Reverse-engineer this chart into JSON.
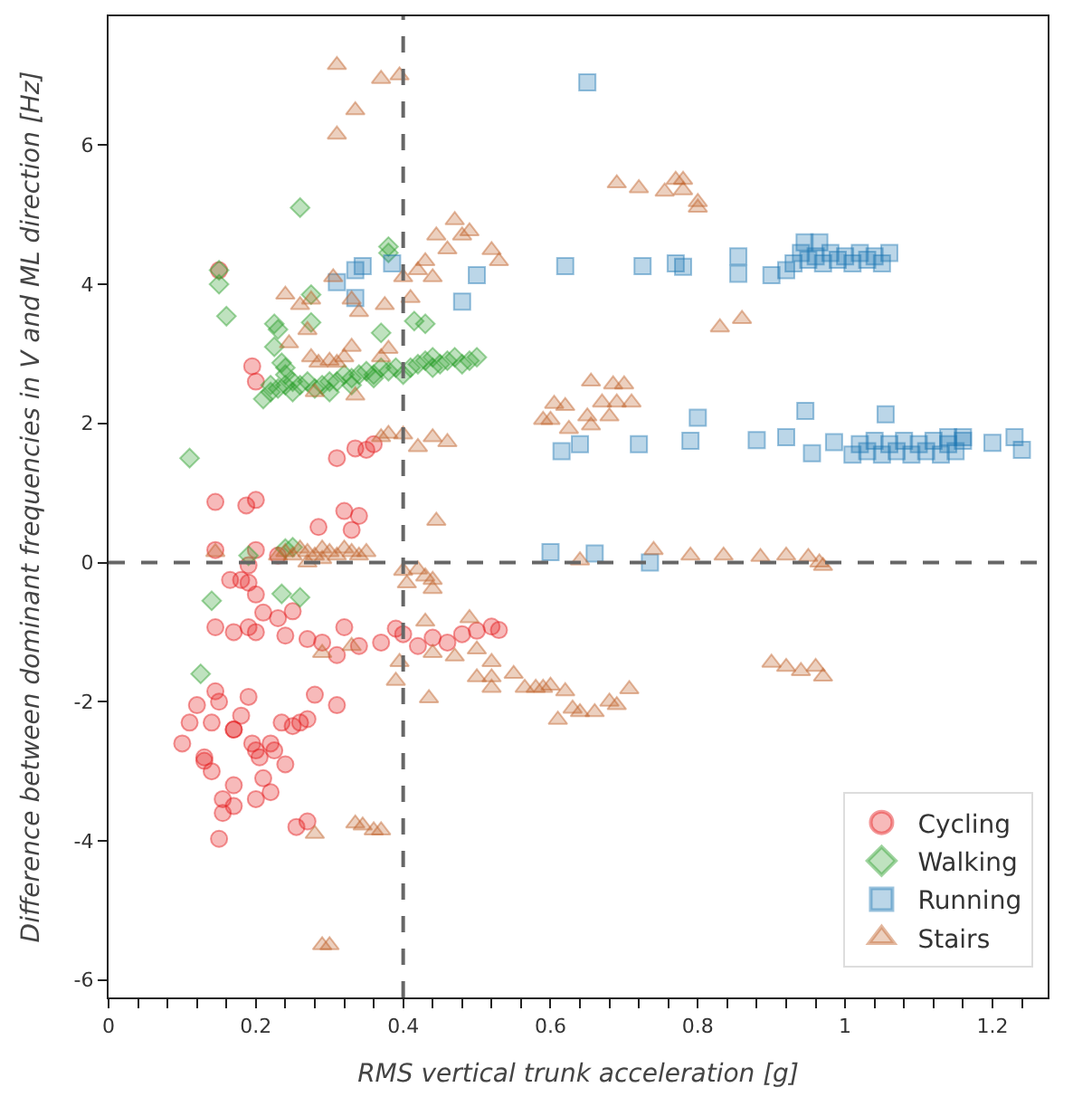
{
  "chart_data": {
    "type": "scatter",
    "xlabel": "RMS vertical trunk acceleration [g]",
    "ylabel": "Difference between dominant frequencies in V and ML direction [Hz]",
    "xlim": [
      0,
      1.275
    ],
    "ylim": [
      -6.25,
      7.85
    ],
    "xticks": [
      0,
      {
        "value": 0.04,
        "label": null
      },
      {
        "value": 0.08,
        "label": null
      },
      {
        "value": 0.12,
        "label": null
      },
      {
        "value": 0.16,
        "label": null
      },
      0.2,
      {
        "value": 0.24,
        "label": null
      },
      {
        "value": 0.28,
        "label": null
      },
      {
        "value": 0.32,
        "label": null
      },
      {
        "value": 0.36,
        "label": null
      },
      0.4,
      {
        "value": 0.44,
        "label": null
      },
      {
        "value": 0.48,
        "label": null
      },
      {
        "value": 0.52,
        "label": null
      },
      {
        "value": 0.56,
        "label": null
      },
      0.6,
      {
        "value": 0.64,
        "label": null
      },
      {
        "value": 0.68,
        "label": null
      },
      {
        "value": 0.72,
        "label": null
      },
      {
        "value": 0.76,
        "label": null
      },
      0.8,
      {
        "value": 0.84,
        "label": null
      },
      {
        "value": 0.88,
        "label": null
      },
      {
        "value": 0.92,
        "label": null
      },
      {
        "value": 0.96,
        "label": null
      },
      1,
      {
        "value": 1.04,
        "label": null
      },
      {
        "value": 1.08,
        "label": null
      },
      {
        "value": 1.12,
        "label": null
      },
      {
        "value": 1.16,
        "label": null
      },
      1.2,
      {
        "value": 1.24,
        "label": null
      }
    ],
    "yticks": [
      -6,
      -4,
      -2,
      0,
      2,
      4,
      6
    ],
    "legend": "bottom right",
    "ref_lines": [
      {
        "axis": "x",
        "value": 0.4,
        "color": "#666666",
        "line_style": "dashed"
      },
      {
        "axis": "y",
        "value": 0,
        "color": "#666666",
        "line_style": "dashed"
      }
    ],
    "series": [
      {
        "name": "Cycling",
        "color": "#e41a1c",
        "marker": "circle",
        "x": [
          0.145,
          0.187,
          0.2,
          0.285,
          0.32,
          0.34,
          0.33,
          0.195,
          0.2,
          0.15,
          0.31,
          0.335,
          0.35,
          0.36,
          0.145,
          0.2,
          0.23,
          0.19,
          0.165,
          0.18,
          0.19,
          0.2,
          0.145,
          0.17,
          0.19,
          0.2,
          0.21,
          0.23,
          0.24,
          0.25,
          0.27,
          0.29,
          0.31,
          0.32,
          0.34,
          0.37,
          0.39,
          0.4,
          0.42,
          0.44,
          0.46,
          0.48,
          0.5,
          0.52,
          0.53,
          0.1,
          0.11,
          0.12,
          0.13,
          0.14,
          0.145,
          0.15,
          0.17,
          0.18,
          0.19,
          0.195,
          0.205,
          0.21,
          0.22,
          0.225,
          0.235,
          0.24,
          0.25,
          0.26,
          0.27,
          0.28,
          0.31,
          0.13,
          0.14,
          0.155,
          0.155,
          0.17,
          0.17,
          0.2,
          0.22,
          0.15,
          0.255,
          0.27,
          0.17,
          0.2
        ],
        "values": [
          0.87,
          0.82,
          0.9,
          0.51,
          0.74,
          0.67,
          0.47,
          2.82,
          2.6,
          4.2,
          1.5,
          1.64,
          1.62,
          1.7,
          0.18,
          0.18,
          0.1,
          -0.04,
          -0.25,
          -0.25,
          -0.29,
          -0.46,
          -0.93,
          -1.0,
          -0.93,
          -1.0,
          -0.72,
          -0.8,
          -1.05,
          -0.7,
          -1.1,
          -1.15,
          -1.33,
          -0.93,
          -1.2,
          -1.15,
          -0.95,
          -1.03,
          -1.2,
          -1.08,
          -1.15,
          -1.03,
          -0.98,
          -0.92,
          -0.97,
          -2.6,
          -2.3,
          -2.05,
          -2.85,
          -2.3,
          -1.85,
          -2.0,
          -2.4,
          -2.2,
          -1.93,
          -2.6,
          -2.8,
          -3.1,
          -2.6,
          -2.7,
          -2.3,
          -2.9,
          -2.35,
          -2.3,
          -2.25,
          -1.9,
          -2.05,
          -2.8,
          -3.0,
          -3.4,
          -3.6,
          -3.5,
          -3.2,
          -3.4,
          -3.3,
          -3.97,
          -3.8,
          -3.72,
          -2.4,
          -2.7
        ]
      },
      {
        "name": "Walking",
        "color": "#2ca02c",
        "marker": "diamond",
        "x": [
          0.26,
          0.15,
          0.15,
          0.16,
          0.38,
          0.38,
          0.225,
          0.23,
          0.275,
          0.275,
          0.225,
          0.235,
          0.24,
          0.37,
          0.415,
          0.43,
          0.11,
          0.22,
          0.24,
          0.25,
          0.21,
          0.22,
          0.23,
          0.24,
          0.25,
          0.26,
          0.27,
          0.28,
          0.29,
          0.3,
          0.31,
          0.32,
          0.33,
          0.34,
          0.35,
          0.36,
          0.37,
          0.38,
          0.39,
          0.4,
          0.41,
          0.42,
          0.43,
          0.44,
          0.45,
          0.46,
          0.47,
          0.48,
          0.49,
          0.5,
          0.44,
          0.36,
          0.3,
          0.33,
          0.14,
          0.125,
          0.235,
          0.26,
          0.19,
          0.24,
          0.25
        ],
        "values": [
          5.1,
          4.2,
          4.0,
          3.54,
          4.54,
          4.45,
          3.43,
          3.35,
          3.85,
          3.45,
          3.1,
          2.87,
          2.8,
          3.3,
          3.47,
          3.43,
          1.5,
          2.55,
          2.7,
          2.6,
          2.35,
          2.45,
          2.5,
          2.55,
          2.45,
          2.55,
          2.6,
          2.5,
          2.55,
          2.6,
          2.6,
          2.7,
          2.65,
          2.7,
          2.75,
          2.7,
          2.8,
          2.75,
          2.8,
          2.7,
          2.8,
          2.85,
          2.9,
          2.95,
          2.85,
          2.9,
          2.95,
          2.85,
          2.9,
          2.95,
          2.8,
          2.65,
          2.45,
          2.55,
          -0.55,
          -1.6,
          -0.45,
          -0.5,
          0.1,
          0.2,
          0.22
        ]
      },
      {
        "name": "Running",
        "color": "#1f77b4",
        "marker": "square",
        "x": [
          0.345,
          0.335,
          0.31,
          0.335,
          0.385,
          0.48,
          0.5,
          0.62,
          0.615,
          0.65,
          0.725,
          0.77,
          0.78,
          0.855,
          0.855,
          0.9,
          0.92,
          0.945,
          0.965,
          0.93,
          0.94,
          0.95,
          0.96,
          0.97,
          0.98,
          0.99,
          1.0,
          1.01,
          1.02,
          1.03,
          1.04,
          1.05,
          1.06,
          0.8,
          0.946,
          1.055,
          0.64,
          0.72,
          0.79,
          0.88,
          0.92,
          0.955,
          0.985,
          1.14,
          1.16,
          1.2,
          1.23,
          1.24,
          1.01,
          1.02,
          1.03,
          1.04,
          1.05,
          1.06,
          1.07,
          1.08,
          1.09,
          1.1,
          1.11,
          1.12,
          1.13,
          1.14,
          1.15,
          1.16,
          0.6,
          0.66,
          0.735
        ],
        "values": [
          4.26,
          4.2,
          4.03,
          3.8,
          4.3,
          3.75,
          4.13,
          4.26,
          1.6,
          6.9,
          4.26,
          4.3,
          4.25,
          4.4,
          4.15,
          4.13,
          4.2,
          4.6,
          4.6,
          4.3,
          4.45,
          4.35,
          4.4,
          4.3,
          4.45,
          4.35,
          4.4,
          4.3,
          4.45,
          4.35,
          4.4,
          4.3,
          4.45,
          2.08,
          2.18,
          2.13,
          1.7,
          1.7,
          1.75,
          1.76,
          1.8,
          1.57,
          1.73,
          1.8,
          1.8,
          1.72,
          1.8,
          1.62,
          1.55,
          1.7,
          1.6,
          1.75,
          1.55,
          1.7,
          1.6,
          1.75,
          1.55,
          1.7,
          1.6,
          1.75,
          1.55,
          1.7,
          1.6,
          1.75,
          0.15,
          0.13,
          0.0
        ]
      },
      {
        "name": "Stairs",
        "color": "#c0622a",
        "marker": "triangle",
        "x": [
          0.31,
          0.37,
          0.395,
          0.335,
          0.31,
          0.47,
          0.445,
          0.48,
          0.49,
          0.46,
          0.52,
          0.53,
          0.43,
          0.42,
          0.44,
          0.4,
          0.305,
          0.24,
          0.26,
          0.275,
          0.33,
          0.34,
          0.375,
          0.41,
          0.27,
          0.245,
          0.275,
          0.285,
          0.3,
          0.31,
          0.32,
          0.33,
          0.38,
          0.37,
          0.335,
          0.28,
          0.37,
          0.38,
          0.4,
          0.42,
          0.44,
          0.46,
          0.445,
          0.605,
          0.59,
          0.62,
          0.655,
          0.685,
          0.7,
          0.67,
          0.69,
          0.71,
          0.625,
          0.65,
          0.655,
          0.6,
          0.68,
          0.69,
          0.72,
          0.755,
          0.77,
          0.78,
          0.78,
          0.8,
          0.8,
          0.83,
          0.86,
          0.145,
          0.23,
          0.24,
          0.25,
          0.26,
          0.27,
          0.28,
          0.29,
          0.3,
          0.31,
          0.32,
          0.33,
          0.34,
          0.35,
          0.27,
          0.29,
          0.4,
          0.405,
          0.42,
          0.43,
          0.44,
          0.44,
          0.43,
          0.49,
          0.395,
          0.39,
          0.435,
          0.29,
          0.33,
          0.44,
          0.47,
          0.5,
          0.52,
          0.5,
          0.52,
          0.55,
          0.52,
          0.565,
          0.58,
          0.59,
          0.6,
          0.61,
          0.62,
          0.63,
          0.64,
          0.66,
          0.68,
          0.69,
          0.707,
          0.9,
          0.92,
          0.94,
          0.96,
          0.97,
          0.64,
          0.74,
          0.79,
          0.835,
          0.885,
          0.92,
          0.95,
          0.965,
          0.97,
          0.335,
          0.345,
          0.36,
          0.37,
          0.28,
          0.29,
          0.3
        ],
        "values": [
          7.15,
          6.95,
          7.0,
          6.5,
          6.15,
          4.92,
          4.7,
          4.7,
          4.76,
          4.5,
          4.49,
          4.33,
          4.33,
          4.2,
          4.1,
          4.1,
          4.1,
          3.85,
          3.7,
          3.78,
          3.78,
          3.6,
          3.7,
          3.8,
          3.34,
          3.15,
          2.95,
          2.87,
          2.9,
          2.87,
          2.95,
          3.1,
          3.07,
          2.95,
          2.4,
          2.45,
          1.8,
          1.85,
          1.84,
          1.66,
          1.8,
          1.73,
          0.6,
          2.28,
          2.05,
          2.25,
          2.6,
          2.56,
          2.56,
          2.3,
          2.3,
          2.3,
          1.92,
          2.1,
          1.97,
          2.05,
          2.1,
          5.45,
          5.38,
          5.33,
          5.5,
          5.5,
          5.35,
          5.18,
          5.1,
          3.38,
          3.5,
          0.15,
          0.1,
          0.15,
          0.1,
          0.2,
          0.15,
          0.1,
          0.2,
          0.15,
          0.1,
          0.2,
          0.15,
          0.1,
          0.15,
          0.0,
          0.05,
          -0.12,
          -0.3,
          -0.1,
          -0.2,
          -0.25,
          -0.38,
          -0.85,
          -0.8,
          -1.43,
          -1.7,
          -1.95,
          -1.3,
          -1.2,
          -1.3,
          -1.35,
          -1.25,
          -1.43,
          -1.65,
          -1.65,
          -1.6,
          -1.8,
          -1.8,
          -1.8,
          -1.8,
          -1.77,
          -2.26,
          -1.85,
          -2.1,
          -2.15,
          -2.15,
          -2.0,
          -2.05,
          -1.82,
          -1.44,
          -1.5,
          -1.56,
          -1.5,
          -1.64,
          0.03,
          0.18,
          0.1,
          0.1,
          0.08,
          0.1,
          0.08,
          0.0,
          -0.05,
          -3.75,
          -3.78,
          -3.85,
          -3.85,
          -3.9,
          -5.5,
          -5.5
        ]
      }
    ]
  }
}
